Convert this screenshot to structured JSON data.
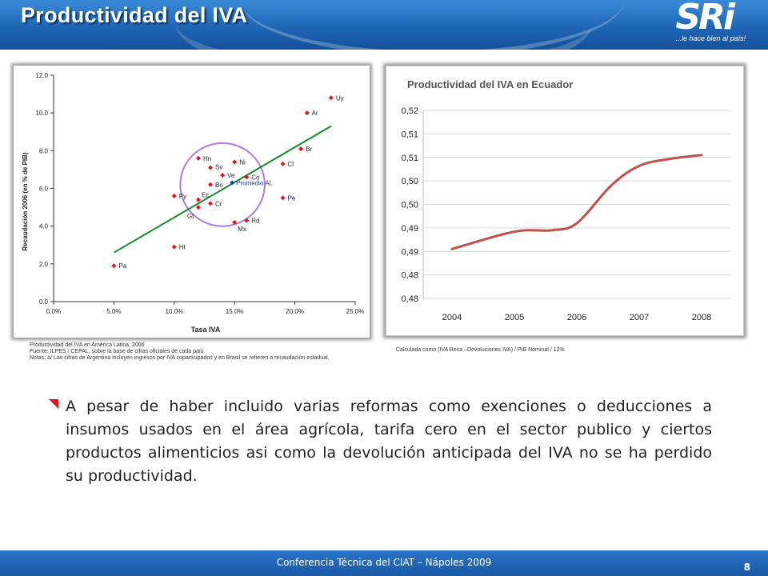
{
  "slide": {
    "title": "Productividad del IVA",
    "logo_text": "SRi",
    "logo_tagline": "...le hace bien al país!",
    "page_number": "8",
    "footer": "Conferencia Técnica del CIAT – Nápoles 2009",
    "body": "A pesar de haber incluido varias reformas como exenciones o deducciones a insumos usados en el área agrícola, tarifa cero en el sector publico y ciertos productos alimenticios asi como la devolución anticipada del IVA no se ha perdido su productividad."
  },
  "notes": {
    "left_line1": "Productividad del IVA en América Latina, 2006",
    "left_line2": "Fuente: ILPES / CEPAL, sobre la base de cifras oficiales de cada país.",
    "left_line3": "Notas: a/ Las cifras de Argentina incluyen ingresos por IVA coparticipados  y en Brasil se refieren a recaudación estadual.",
    "right": "Calculada como (IVA Reca –Devoluciones IVA) / PIB Nominal / 12%"
  },
  "colors": {
    "point": "#e0141e",
    "average_point": "#1a3fa0",
    "average_label": "#1a3fa0",
    "trendline": "#138a2e",
    "circle": "#b07ad8",
    "line_series": "#c0504d",
    "bullet": "#e0141e",
    "header": "#1f66b5"
  },
  "chart_data": [
    {
      "type": "scatter",
      "title": "",
      "xlabel": "Tasa IVA",
      "ylabel": "Recaudación 2006 (en % de PIB)",
      "xlim": [
        0,
        25
      ],
      "ylim": [
        0,
        12
      ],
      "x_ticks": [
        "0.0%",
        "5.0%",
        "10.0%",
        "15.0%",
        "20.0%",
        "25.0%"
      ],
      "y_ticks": [
        "0.0",
        "2.0",
        "4.0",
        "6.0",
        "8.0",
        "10.0",
        "12.0"
      ],
      "points": [
        {
          "label": "Uy",
          "x": 23.0,
          "y": 10.8
        },
        {
          "label": "Ar",
          "x": 21.0,
          "y": 10.0
        },
        {
          "label": "Br",
          "x": 20.5,
          "y": 8.1
        },
        {
          "label": "Cl",
          "x": 19.0,
          "y": 7.3
        },
        {
          "label": "Pe",
          "x": 19.0,
          "y": 5.5
        },
        {
          "label": "Hn",
          "x": 12.0,
          "y": 7.6
        },
        {
          "label": "Sv",
          "x": 13.0,
          "y": 7.1
        },
        {
          "label": "Ni",
          "x": 15.0,
          "y": 7.4
        },
        {
          "label": "Ve",
          "x": 14.0,
          "y": 6.7
        },
        {
          "label": "Co",
          "x": 16.0,
          "y": 6.6
        },
        {
          "label": "Bo",
          "x": 13.0,
          "y": 6.2
        },
        {
          "label": "Py",
          "x": 10.0,
          "y": 5.6
        },
        {
          "label": "Ec",
          "x": 12.0,
          "y": 5.4
        },
        {
          "label": "Cr",
          "x": 13.0,
          "y": 5.2
        },
        {
          "label": "Gt",
          "x": 12.0,
          "y": 5.0
        },
        {
          "label": "Mx",
          "x": 15.0,
          "y": 4.2
        },
        {
          "label": "Rd",
          "x": 16.0,
          "y": 4.3
        },
        {
          "label": "Ht",
          "x": 10.0,
          "y": 2.9
        },
        {
          "label": "Pa",
          "x": 5.0,
          "y": 1.9
        }
      ],
      "average": {
        "label": "Promedio AL",
        "x": 14.8,
        "y": 6.3
      },
      "trendline": {
        "from": [
          5.0,
          2.6
        ],
        "to": [
          23.0,
          9.3
        ]
      },
      "highlight_circle": {
        "center": [
          14.0,
          6.2
        ],
        "rx": 3.5,
        "ry": 2.2
      },
      "grid": false
    },
    {
      "type": "line",
      "title": "Productividad del IVA en Ecuador",
      "xlabel": "",
      "ylabel": "",
      "ylim": [
        0.48,
        0.52
      ],
      "y_ticks": [
        "0,52",
        "0,51",
        "0,51",
        "0,50",
        "0,50",
        "0,49",
        "0,49",
        "0,48",
        "0,48"
      ],
      "categories": [
        "2004",
        "2005",
        "2006",
        "2007",
        "2008"
      ],
      "series": [
        {
          "name": "",
          "values": [
            0.4905,
            0.494,
            0.496,
            0.508,
            0.5105
          ]
        }
      ],
      "curve_points": [
        [
          0,
          0.4905
        ],
        [
          1,
          0.4942
        ],
        [
          1.6,
          0.4945
        ],
        [
          2,
          0.496
        ],
        [
          2.55,
          0.504
        ],
        [
          3,
          0.5082
        ],
        [
          3.5,
          0.5097
        ],
        [
          4,
          0.5105
        ]
      ],
      "grid": true,
      "legend": "none"
    }
  ]
}
